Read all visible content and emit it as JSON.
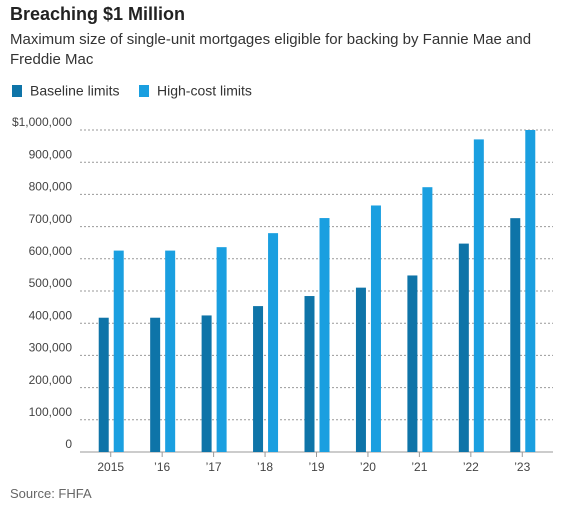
{
  "chart_data": {
    "type": "bar",
    "title": "Breaching $1 Million",
    "subtitle": "Maximum size of single-unit mortgages eligible for backing by Fannie Mae and Freddie Mac",
    "source": "Source: FHFA",
    "categories": [
      "2015",
      "’16",
      "’17",
      "’18",
      "’19",
      "’20",
      "’21",
      "’22",
      "’23"
    ],
    "series": [
      {
        "name": "Baseline limits",
        "color": "#0e74a8",
        "values": [
          417000,
          417000,
          424100,
          453100,
          484350,
          510400,
          548250,
          647200,
          726200
        ]
      },
      {
        "name": "High-cost limits",
        "color": "#1a9fe0",
        "values": [
          625500,
          625500,
          636150,
          679650,
          726525,
          765600,
          822375,
          970800,
          1000000
        ]
      }
    ],
    "ylim": [
      0,
      1000000
    ],
    "yticks": [
      0,
      {
        "value": 100000,
        "label": "100,000"
      },
      {
        "value": 200000,
        "label": "200,000"
      },
      {
        "value": 300000,
        "label": "300,000"
      },
      {
        "value": 400000,
        "label": "400,000"
      },
      {
        "value": 500000,
        "label": "500,000"
      },
      {
        "value": 600000,
        "label": "600,000"
      },
      {
        "value": 700000,
        "label": "700,000"
      },
      {
        "value": 800000,
        "label": "800,000"
      },
      {
        "value": 900000,
        "label": "900,000"
      },
      {
        "value": 1000000,
        "label": "$1,000,000"
      }
    ],
    "grid": true
  }
}
